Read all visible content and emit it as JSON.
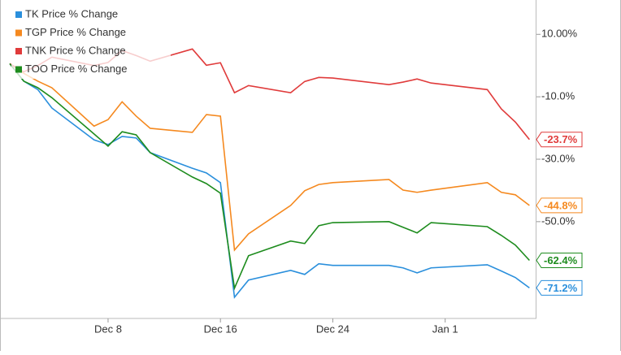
{
  "chart_data": {
    "type": "line",
    "x": [
      1,
      2,
      3,
      4,
      7,
      8,
      9,
      10,
      11,
      14,
      15,
      16,
      17,
      18,
      21,
      22,
      23,
      24,
      28,
      29,
      30,
      31,
      35,
      36,
      37,
      38
    ],
    "xlim": [
      1,
      38.5
    ],
    "xticks": [
      {
        "value": 8,
        "label": "Dec 8"
      },
      {
        "value": 16,
        "label": "Dec 16"
      },
      {
        "value": 24,
        "label": "Dec 24"
      },
      {
        "value": 32,
        "label": "Jan 1"
      }
    ],
    "ylim": [
      -81,
      21
    ],
    "yticks": [
      {
        "value": 10,
        "label": "10.00%"
      },
      {
        "value": -10,
        "label": "-10.0%"
      },
      {
        "value": -30,
        "label": "-30.0%"
      },
      {
        "value": -50,
        "label": "-50.0%"
      }
    ],
    "grid": false,
    "legend": "top-left",
    "series": [
      {
        "name": "TK Price % Change",
        "color": "#2a8fdc",
        "values": [
          0.6,
          -5,
          -7.7,
          -13.6,
          -23.8,
          -25.3,
          -22.7,
          -23.2,
          -27.9,
          -32.9,
          -34.4,
          -37.5,
          -74.2,
          -68.7,
          -65.6,
          -66.9,
          -63.5,
          -64,
          -64,
          -64.8,
          -66.4,
          -64.8,
          -63.8,
          -65.8,
          -67.9,
          -71.2
        ],
        "value_labels": [
          null,
          null,
          null,
          null,
          null,
          null,
          null,
          null,
          null,
          null,
          null,
          null,
          null,
          null,
          null,
          null,
          null,
          null,
          null,
          null,
          null,
          null,
          null,
          null,
          null,
          "-71.2%"
        ]
      },
      {
        "name": "TGP Price % Change",
        "color": "#f5891f",
        "values": [
          0.6,
          -2.5,
          -5,
          -7.1,
          -19.4,
          -17.3,
          -11.6,
          -16.2,
          -20.1,
          -21.4,
          -15.7,
          -16.2,
          -59.1,
          -53.9,
          -44.8,
          -40.1,
          -38.1,
          -37.5,
          -36.5,
          -39.9,
          -40.6,
          -39.9,
          -37.5,
          -40.6,
          -41.4,
          -44.8
        ],
        "value_labels": [
          null,
          null,
          null,
          null,
          null,
          null,
          null,
          null,
          null,
          null,
          null,
          null,
          null,
          null,
          null,
          null,
          null,
          null,
          null,
          null,
          null,
          null,
          null,
          null,
          null,
          "-44.8%"
        ]
      },
      {
        "name": "TNK Price % Change",
        "color": "#e03b3b",
        "values": [
          0.6,
          -2,
          0,
          2.7,
          0,
          1,
          4.8,
          3.2,
          1.4,
          5.3,
          0.1,
          0.9,
          -8.7,
          -6.4,
          -8.7,
          -5.1,
          -3.8,
          -4,
          -6.1,
          -5.3,
          -4.3,
          -5.6,
          -7.7,
          -13.9,
          -18.1,
          -23.7
        ],
        "value_labels": [
          null,
          null,
          null,
          null,
          null,
          null,
          null,
          null,
          null,
          null,
          null,
          null,
          null,
          null,
          null,
          null,
          null,
          null,
          null,
          null,
          null,
          null,
          null,
          null,
          null,
          "-23.7%"
        ]
      },
      {
        "name": "TOO Price % Change",
        "color": "#1e8c1e",
        "values": [
          0.6,
          -5,
          -7.1,
          -10.3,
          -21.9,
          -25.8,
          -21.2,
          -22.2,
          -27.9,
          -35.7,
          -37.8,
          -40.9,
          -71.3,
          -60.9,
          -56.2,
          -57,
          -51.3,
          -50.3,
          -50,
          -51.8,
          -53.6,
          -50.3,
          -51.6,
          -54.4,
          -57.5,
          -62.4
        ],
        "value_labels": [
          null,
          null,
          null,
          null,
          null,
          null,
          null,
          null,
          null,
          null,
          null,
          null,
          null,
          null,
          null,
          null,
          null,
          null,
          null,
          null,
          null,
          null,
          null,
          null,
          null,
          "-62.4%"
        ]
      }
    ]
  }
}
